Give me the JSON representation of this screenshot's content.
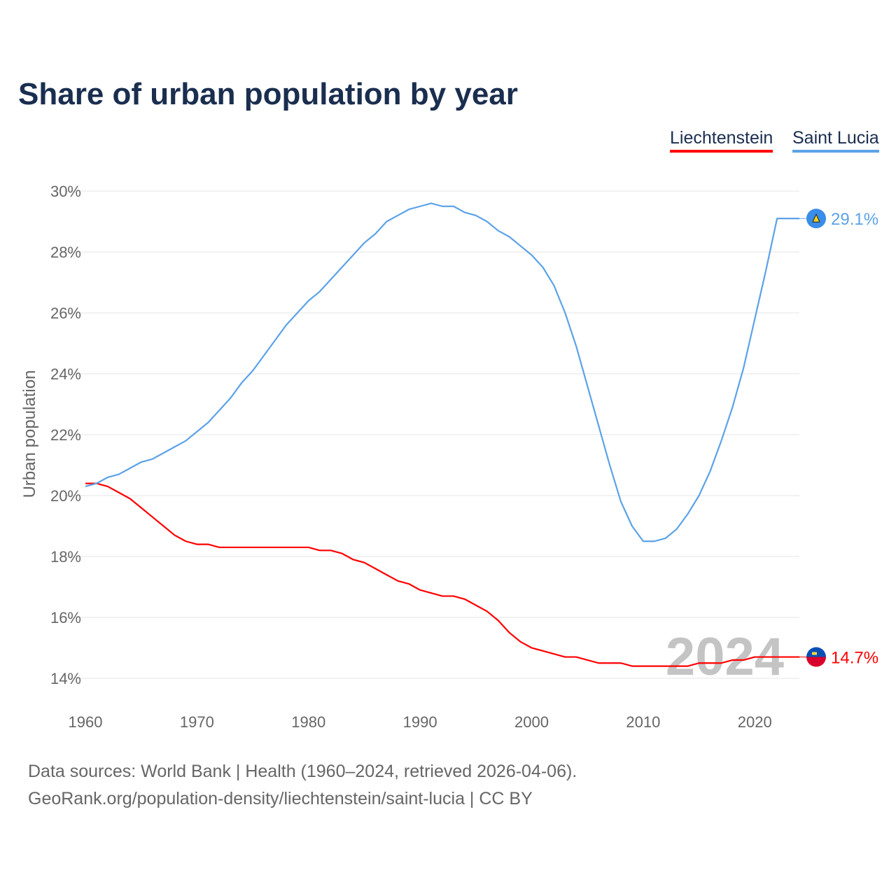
{
  "chart_data": {
    "type": "line",
    "title": "Share of urban population by year",
    "xlabel": "",
    "ylabel": "Urban population",
    "xlim": [
      1960,
      2024
    ],
    "ylim": [
      14,
      30
    ],
    "x_ticks": [
      "1960",
      "1970",
      "1980",
      "1990",
      "2000",
      "2010",
      "2020"
    ],
    "y_ticks": [
      "14%",
      "16%",
      "18%",
      "20%",
      "22%",
      "24%",
      "26%",
      "28%",
      "30%"
    ],
    "grid": true,
    "legend_position": "top-right",
    "watermark_year": "2024",
    "x": [
      1960,
      1961,
      1962,
      1963,
      1964,
      1965,
      1966,
      1967,
      1968,
      1969,
      1970,
      1971,
      1972,
      1973,
      1974,
      1975,
      1976,
      1977,
      1978,
      1979,
      1980,
      1981,
      1982,
      1983,
      1984,
      1985,
      1986,
      1987,
      1988,
      1989,
      1990,
      1991,
      1992,
      1993,
      1994,
      1995,
      1996,
      1997,
      1998,
      1999,
      2000,
      2001,
      2002,
      2003,
      2004,
      2005,
      2006,
      2007,
      2008,
      2009,
      2010,
      2011,
      2012,
      2013,
      2014,
      2015,
      2016,
      2017,
      2018,
      2019,
      2020,
      2021,
      2022,
      2023,
      2024
    ],
    "series": [
      {
        "name": "Liechtenstein",
        "color": "#ff0000",
        "end_label": "14.7%",
        "flag": "liechtenstein-flag",
        "values": [
          20.4,
          20.4,
          20.3,
          20.1,
          19.9,
          19.6,
          19.3,
          19.0,
          18.7,
          18.5,
          18.4,
          18.4,
          18.3,
          18.3,
          18.3,
          18.3,
          18.3,
          18.3,
          18.3,
          18.3,
          18.3,
          18.2,
          18.2,
          18.1,
          17.9,
          17.8,
          17.6,
          17.4,
          17.2,
          17.1,
          16.9,
          16.8,
          16.7,
          16.7,
          16.6,
          16.4,
          16.2,
          15.9,
          15.5,
          15.2,
          15.0,
          14.9,
          14.8,
          14.7,
          14.7,
          14.6,
          14.5,
          14.5,
          14.5,
          14.4,
          14.4,
          14.4,
          14.4,
          14.4,
          14.4,
          14.5,
          14.5,
          14.5,
          14.6,
          14.6,
          14.7,
          14.7,
          14.7,
          14.7,
          14.7
        ]
      },
      {
        "name": "Saint Lucia",
        "color": "#5ca2e8",
        "end_label": "29.1%",
        "flag": "saint-lucia-flag",
        "values": [
          20.3,
          20.4,
          20.6,
          20.7,
          20.9,
          21.1,
          21.2,
          21.4,
          21.6,
          21.8,
          22.1,
          22.4,
          22.8,
          23.2,
          23.7,
          24.1,
          24.6,
          25.1,
          25.6,
          26.0,
          26.4,
          26.7,
          27.1,
          27.5,
          27.9,
          28.3,
          28.6,
          29.0,
          29.2,
          29.4,
          29.5,
          29.6,
          29.5,
          29.5,
          29.3,
          29.2,
          29.0,
          28.7,
          28.5,
          28.2,
          27.9,
          27.5,
          26.9,
          26.0,
          24.9,
          23.6,
          22.3,
          21.0,
          19.8,
          19.0,
          18.5,
          18.5,
          18.6,
          18.9,
          19.4,
          20.0,
          20.8,
          21.8,
          22.9,
          24.2,
          25.8,
          27.4,
          29.1,
          29.1,
          29.1
        ]
      }
    ]
  },
  "footer": {
    "line1": "Data sources: World Bank | Health (1960–2024, retrieved 2026-04-06).",
    "line2": "GeoRank.org/population-density/liechtenstein/saint-lucia | CC BY"
  }
}
